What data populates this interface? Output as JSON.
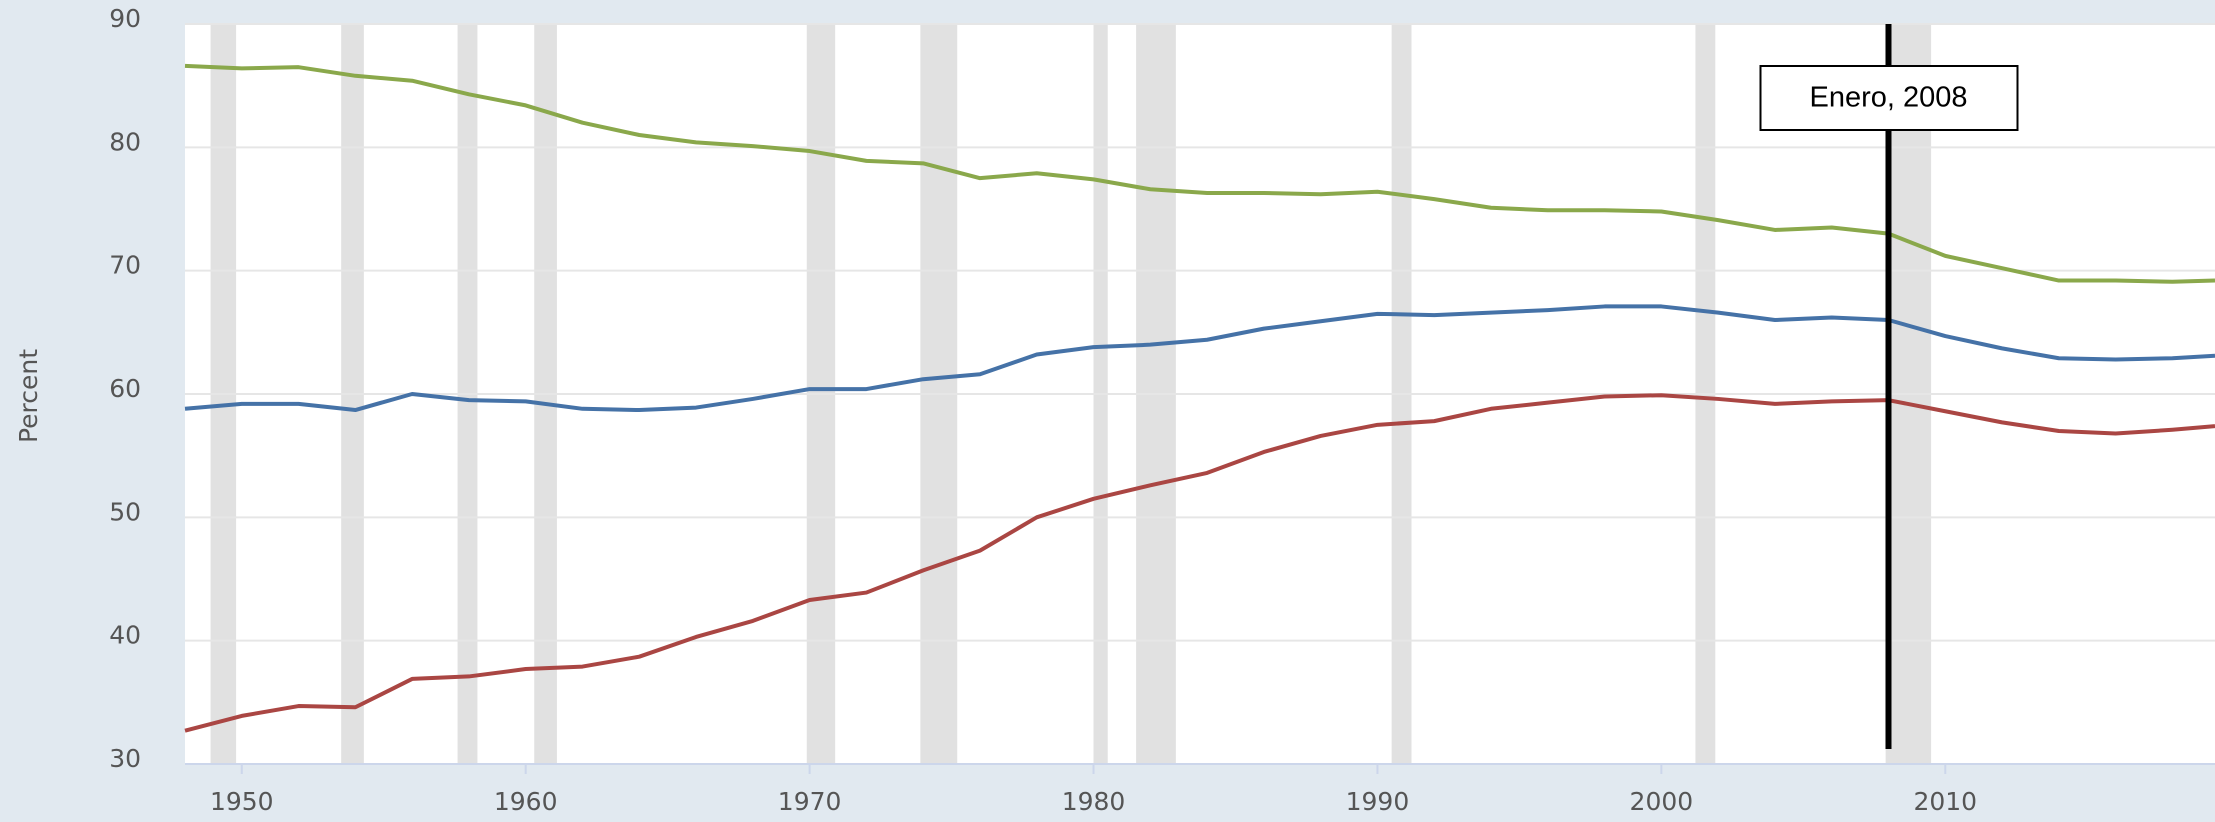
{
  "chart_data": {
    "type": "line",
    "y_label": "Percent",
    "x": [
      1948,
      1950,
      1952,
      1954,
      1956,
      1958,
      1960,
      1962,
      1964,
      1966,
      1968,
      1970,
      1972,
      1974,
      1976,
      1978,
      1980,
      1982,
      1984,
      1986,
      1988,
      1990,
      1992,
      1994,
      1996,
      1998,
      2000,
      2002,
      2004,
      2006,
      2008,
      2010,
      2012,
      2014,
      2016,
      2018,
      2019.5
    ],
    "series": [
      {
        "color": "#8aa84b",
        "values": [
          86.6,
          86.4,
          86.5,
          85.8,
          85.4,
          84.3,
          83.4,
          82.0,
          81.0,
          80.4,
          80.1,
          79.7,
          78.9,
          78.7,
          77.5,
          77.9,
          77.4,
          76.6,
          76.3,
          76.3,
          76.2,
          76.4,
          75.8,
          75.1,
          74.9,
          74.9,
          74.8,
          74.1,
          73.3,
          73.5,
          73.0,
          71.2,
          70.2,
          69.2,
          69.2,
          69.1,
          69.2
        ]
      },
      {
        "color": "#4572a7",
        "values": [
          58.8,
          59.2,
          59.2,
          58.7,
          60.0,
          59.5,
          59.4,
          58.8,
          58.7,
          58.9,
          59.6,
          60.4,
          60.4,
          61.2,
          61.6,
          63.2,
          63.8,
          64.0,
          64.4,
          65.3,
          65.9,
          66.5,
          66.4,
          66.6,
          66.8,
          67.1,
          67.1,
          66.6,
          66.0,
          66.2,
          66.0,
          64.7,
          63.7,
          62.9,
          62.8,
          62.9,
          63.1
        ]
      },
      {
        "color": "#aa4643",
        "values": [
          32.7,
          33.9,
          34.7,
          34.6,
          36.9,
          37.1,
          37.7,
          37.9,
          38.7,
          40.3,
          41.6,
          43.3,
          43.9,
          45.7,
          47.3,
          50.0,
          51.5,
          52.6,
          53.6,
          55.3,
          56.6,
          57.5,
          57.8,
          58.8,
          59.3,
          59.8,
          59.9,
          59.6,
          59.2,
          59.4,
          59.5,
          58.6,
          57.7,
          57.0,
          56.8,
          57.1,
          57.4
        ]
      }
    ],
    "recessions": [
      [
        1948.9,
        1949.8
      ],
      [
        1953.5,
        1954.3
      ],
      [
        1957.6,
        1958.3
      ],
      [
        1960.3,
        1961.1
      ],
      [
        1969.9,
        1970.9
      ],
      [
        1973.9,
        1975.2
      ],
      [
        1980.0,
        1980.5
      ],
      [
        1981.5,
        1982.9
      ],
      [
        1990.5,
        1991.2
      ],
      [
        2001.2,
        2001.9
      ],
      [
        2007.9,
        2009.5
      ]
    ],
    "recession_color": "#e1e1e1",
    "annotation": {
      "x": 2008,
      "text": "Enero, 2008"
    },
    "xlim": [
      1948,
      2019.5
    ],
    "xticks": [
      1950,
      1960,
      1970,
      1980,
      1990,
      2000,
      2010
    ],
    "ylim": [
      30,
      90
    ],
    "yticks": [
      30,
      40,
      50,
      60,
      70,
      80,
      90
    ],
    "grid": true
  }
}
